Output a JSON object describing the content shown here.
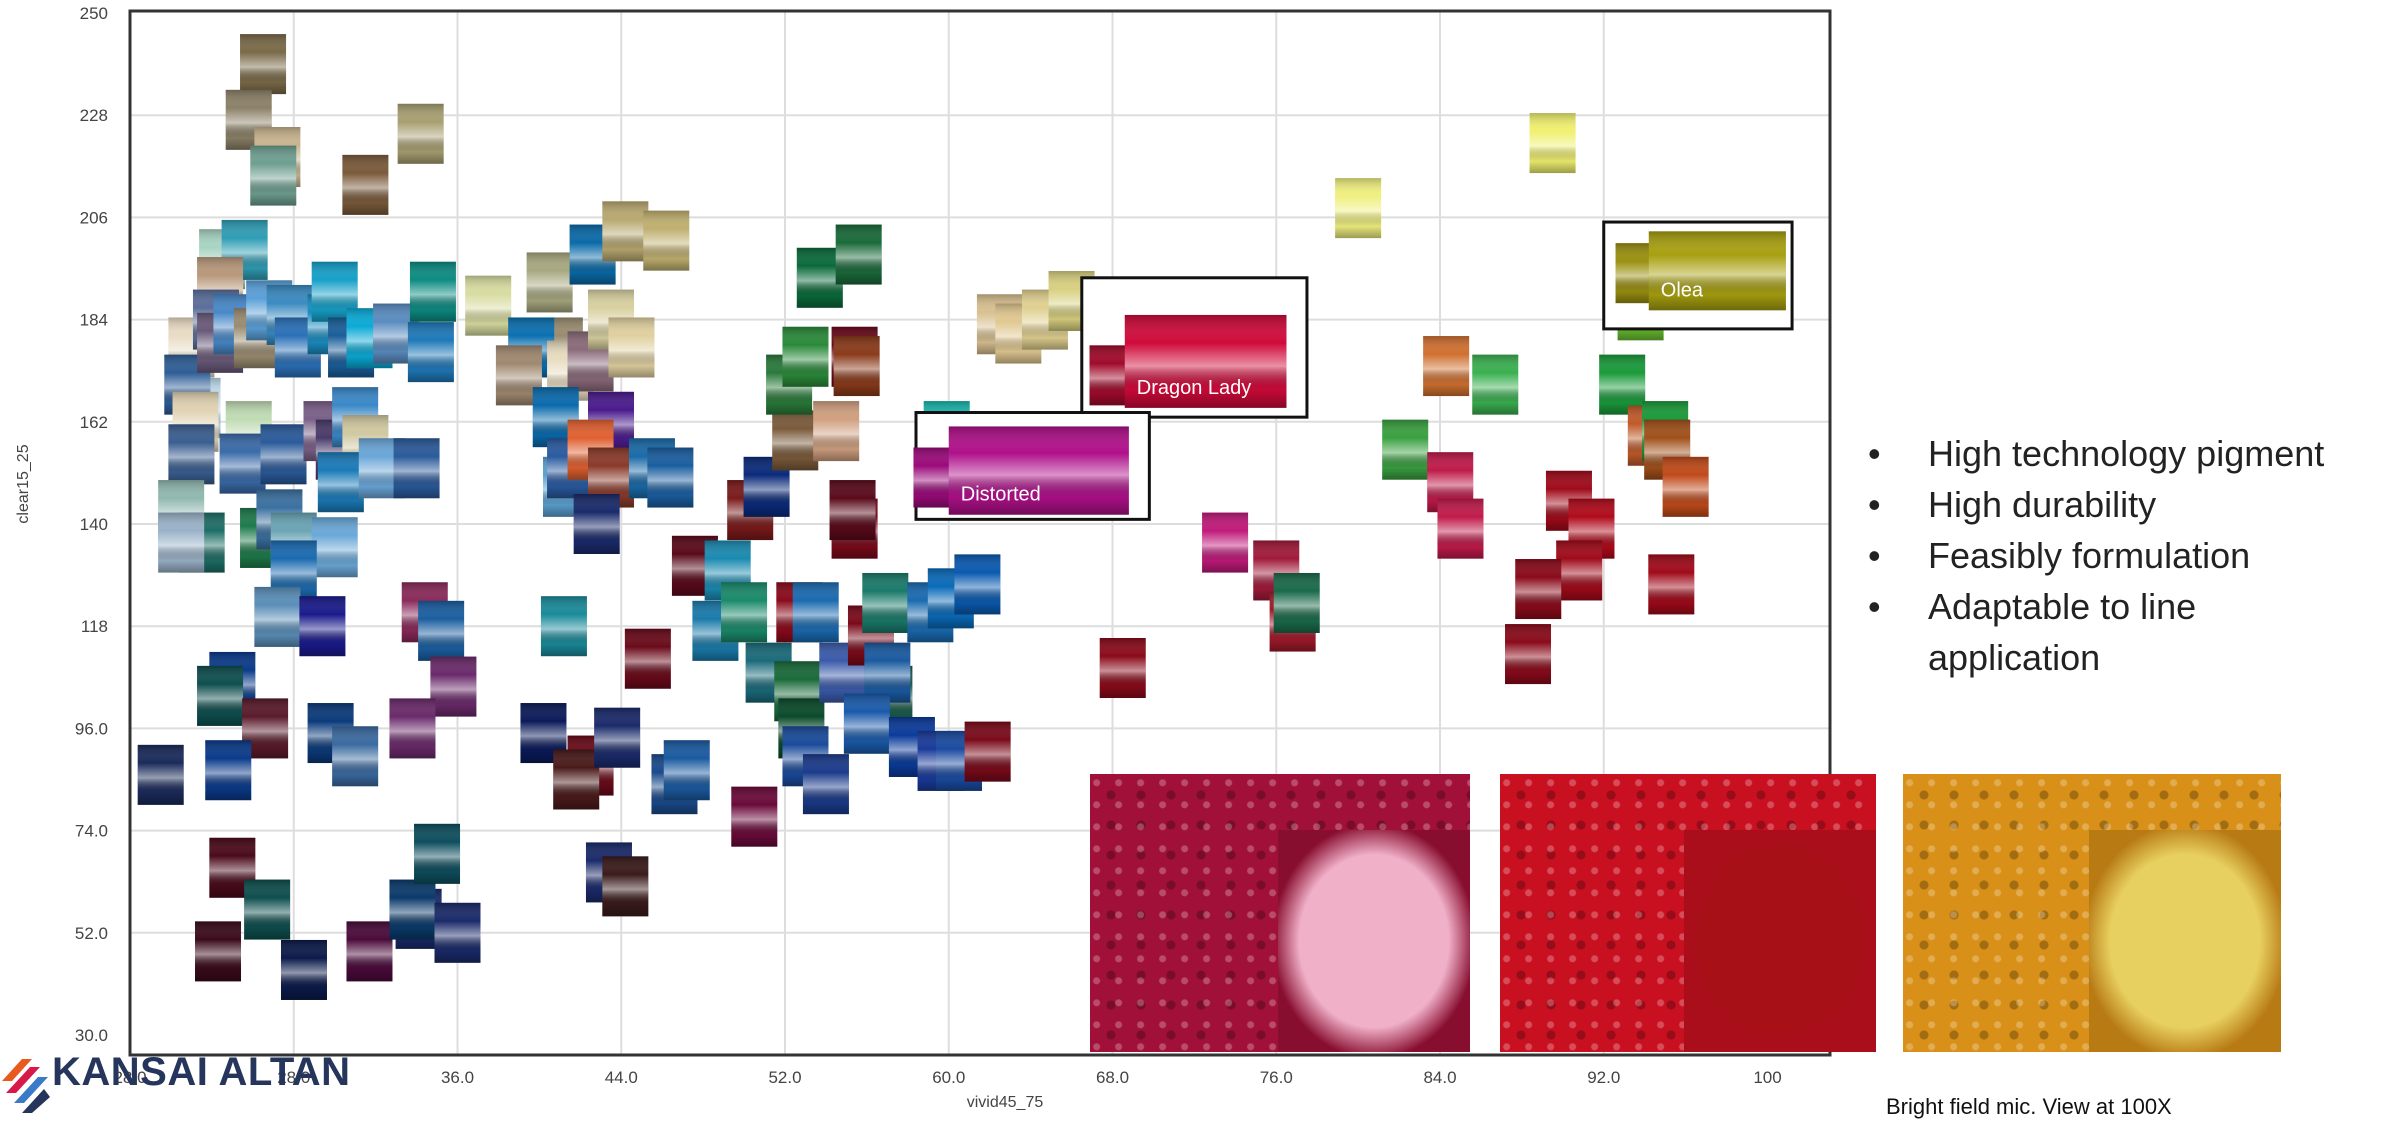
{
  "chart_data": {
    "type": "scatter",
    "xlabel": "vivid45_75",
    "ylabel": "clear15_25",
    "xlim": [
      24,
      100
    ],
    "ylim": [
      30,
      250
    ],
    "x_ticks": [
      "28.0",
      "28.0",
      "36.0",
      "44.0",
      "52.0",
      "60.0",
      "68.0",
      "76.0",
      "84.0",
      "92.0",
      "100"
    ],
    "y_ticks": [
      "250",
      "228",
      "206",
      "184",
      "162",
      "140",
      "118",
      "96.0",
      "74.0",
      "52.0",
      "30.0"
    ],
    "grid": true,
    "marker": "color swatch squares",
    "points": [
      {
        "x": 30.5,
        "y": 239,
        "c": "#7a6a48"
      },
      {
        "x": 29.8,
        "y": 227,
        "c": "#8c8168"
      },
      {
        "x": 31.2,
        "y": 219,
        "c": "#c9b48e"
      },
      {
        "x": 31.0,
        "y": 215,
        "c": "#6e9f90"
      },
      {
        "x": 35.5,
        "y": 213,
        "c": "#7a5a3a"
      },
      {
        "x": 38.2,
        "y": 224,
        "c": "#a8a072"
      },
      {
        "x": 28.5,
        "y": 197,
        "c": "#a8d4c2"
      },
      {
        "x": 29.6,
        "y": 199,
        "c": "#2f9db5"
      },
      {
        "x": 28.4,
        "y": 191,
        "c": "#b8987a"
      },
      {
        "x": 27.0,
        "y": 178,
        "c": "#e8dcc4"
      },
      {
        "x": 27.3,
        "y": 165,
        "c": "#c0dcee"
      },
      {
        "x": 26.8,
        "y": 170,
        "c": "#2e5e96"
      },
      {
        "x": 27.2,
        "y": 162,
        "c": "#e0d2b2"
      },
      {
        "x": 27.0,
        "y": 155,
        "c": "#3a5e90"
      },
      {
        "x": 28.2,
        "y": 184,
        "c": "#5a6e9a"
      },
      {
        "x": 28.4,
        "y": 179,
        "c": "#6a5a7a"
      },
      {
        "x": 29.2,
        "y": 183,
        "c": "#4888c8"
      },
      {
        "x": 30.2,
        "y": 180,
        "c": "#9a8c70"
      },
      {
        "x": 30.8,
        "y": 186,
        "c": "#5aa0d8"
      },
      {
        "x": 31.8,
        "y": 185,
        "c": "#3a8ac0"
      },
      {
        "x": 32.2,
        "y": 178,
        "c": "#2a70b8"
      },
      {
        "x": 33.8,
        "y": 183,
        "c": "#1a8cc0"
      },
      {
        "x": 34.0,
        "y": 190,
        "c": "#16a0c8"
      },
      {
        "x": 34.8,
        "y": 178,
        "c": "#1a5e9a"
      },
      {
        "x": 35.7,
        "y": 180,
        "c": "#0aaad6"
      },
      {
        "x": 37.0,
        "y": 181,
        "c": "#5a8cc0"
      },
      {
        "x": 38.7,
        "y": 177,
        "c": "#1e78b8"
      },
      {
        "x": 38.8,
        "y": 190,
        "c": "#0c8c82"
      },
      {
        "x": 41.5,
        "y": 187,
        "c": "#d8dca0"
      },
      {
        "x": 44.5,
        "y": 192,
        "c": "#a8a880"
      },
      {
        "x": 45.0,
        "y": 178,
        "c": "#9a8c70"
      },
      {
        "x": 43.6,
        "y": 178,
        "c": "#0a70b0"
      },
      {
        "x": 43.0,
        "y": 172,
        "c": "#a08870"
      },
      {
        "x": 45.5,
        "y": 173,
        "c": "#e8dcc0"
      },
      {
        "x": 46.5,
        "y": 175,
        "c": "#8a6a7a"
      },
      {
        "x": 47.5,
        "y": 162,
        "c": "#4a1a8c"
      },
      {
        "x": 44.8,
        "y": 163,
        "c": "#0a6aac"
      },
      {
        "x": 46.6,
        "y": 198,
        "c": "#0a6aa8"
      },
      {
        "x": 48.2,
        "y": 203,
        "c": "#b8a870"
      },
      {
        "x": 47.5,
        "y": 184,
        "c": "#d8d0a0"
      },
      {
        "x": 48.5,
        "y": 178,
        "c": "#e0d0a0"
      },
      {
        "x": 29.8,
        "y": 160,
        "c": "#c0dcb4"
      },
      {
        "x": 29.5,
        "y": 153,
        "c": "#3a6aa8"
      },
      {
        "x": 31.5,
        "y": 155,
        "c": "#2a5a9a"
      },
      {
        "x": 33.6,
        "y": 160,
        "c": "#7a6088"
      },
      {
        "x": 34.2,
        "y": 156,
        "c": "#4a3a6a"
      },
      {
        "x": 35.0,
        "y": 163,
        "c": "#3a88c8"
      },
      {
        "x": 35.5,
        "y": 157,
        "c": "#d0c8a0"
      },
      {
        "x": 34.3,
        "y": 149,
        "c": "#1a7ab8"
      },
      {
        "x": 36.3,
        "y": 152,
        "c": "#6aa6d8"
      },
      {
        "x": 38.0,
        "y": 152,
        "c": "#2a5a9a"
      },
      {
        "x": 26.5,
        "y": 143,
        "c": "#90b8b0"
      },
      {
        "x": 27.5,
        "y": 136,
        "c": "#1e6e66"
      },
      {
        "x": 26.5,
        "y": 136,
        "c": "#9ab2c8"
      },
      {
        "x": 30.5,
        "y": 137,
        "c": "#1e7a4a"
      },
      {
        "x": 31.3,
        "y": 141,
        "c": "#3a70a0"
      },
      {
        "x": 32.0,
        "y": 136,
        "c": "#6aa4b4"
      },
      {
        "x": 34.0,
        "y": 135,
        "c": "#6aa8d8"
      },
      {
        "x": 32.0,
        "y": 130,
        "c": "#1a6ab0"
      },
      {
        "x": 31.2,
        "y": 120,
        "c": "#5a8eb8"
      },
      {
        "x": 33.4,
        "y": 118,
        "c": "#1a1a8c"
      },
      {
        "x": 38.4,
        "y": 121,
        "c": "#8a2a5a"
      },
      {
        "x": 39.2,
        "y": 117,
        "c": "#1a5ea0"
      },
      {
        "x": 39.8,
        "y": 105,
        "c": "#6a2a6a"
      },
      {
        "x": 29.0,
        "y": 106,
        "c": "#0a3a8a"
      },
      {
        "x": 28.4,
        "y": 103,
        "c": "#0e4e4e"
      },
      {
        "x": 30.6,
        "y": 96,
        "c": "#5a1a2a"
      },
      {
        "x": 33.8,
        "y": 95,
        "c": "#0a3a7a"
      },
      {
        "x": 35.0,
        "y": 90,
        "c": "#3a6aa0"
      },
      {
        "x": 37.8,
        "y": 96,
        "c": "#6a2a6a"
      },
      {
        "x": 25.5,
        "y": 86,
        "c": "#1a2a5a"
      },
      {
        "x": 28.8,
        "y": 87,
        "c": "#0a3a8a"
      },
      {
        "x": 29.0,
        "y": 66,
        "c": "#4a0a1a"
      },
      {
        "x": 28.3,
        "y": 48,
        "c": "#3a0a1a"
      },
      {
        "x": 30.7,
        "y": 57,
        "c": "#0e4e4e"
      },
      {
        "x": 32.5,
        "y": 44,
        "c": "#0a1a4a"
      },
      {
        "x": 35.7,
        "y": 48,
        "c": "#4a0a3a"
      },
      {
        "x": 38.1,
        "y": 55,
        "c": "#1a2a6a"
      },
      {
        "x": 37.8,
        "y": 57,
        "c": "#0a3a6a"
      },
      {
        "x": 39.0,
        "y": 69,
        "c": "#0e4e5e"
      },
      {
        "x": 40.0,
        "y": 52,
        "c": "#1a2a6a"
      },
      {
        "x": 45.3,
        "y": 148,
        "c": "#5aa0d0"
      },
      {
        "x": 45.5,
        "y": 152,
        "c": "#2a5aa0"
      },
      {
        "x": 46.5,
        "y": 156,
        "c": "#e06030"
      },
      {
        "x": 47.5,
        "y": 150,
        "c": "#8a3a2a"
      },
      {
        "x": 46.8,
        "y": 140,
        "c": "#1a2a6a"
      },
      {
        "x": 49.5,
        "y": 152,
        "c": "#1a6aa8"
      },
      {
        "x": 50.4,
        "y": 150,
        "c": "#1a5ea0"
      },
      {
        "x": 45.2,
        "y": 118,
        "c": "#1a8a9a"
      },
      {
        "x": 49.3,
        "y": 111,
        "c": "#6a0a1a"
      },
      {
        "x": 51.6,
        "y": 131,
        "c": "#5a0a1a"
      },
      {
        "x": 53.2,
        "y": 130,
        "c": "#1a8ab0"
      },
      {
        "x": 54.3,
        "y": 143,
        "c": "#7a1a1a"
      },
      {
        "x": 55.1,
        "y": 148,
        "c": "#0a2a7a"
      },
      {
        "x": 56.7,
        "y": 121,
        "c": "#8a0a1a"
      },
      {
        "x": 52.6,
        "y": 117,
        "c": "#1a7aaa"
      },
      {
        "x": 54.0,
        "y": 121,
        "c": "#1a8a6a"
      },
      {
        "x": 55.2,
        "y": 108,
        "c": "#1a6a7a"
      },
      {
        "x": 57.5,
        "y": 121,
        "c": "#1a6ab0"
      },
      {
        "x": 56.6,
        "y": 104,
        "c": "#1a6a3a"
      },
      {
        "x": 56.8,
        "y": 96,
        "c": "#0a4a2a"
      },
      {
        "x": 58.8,
        "y": 108,
        "c": "#3a5aaa"
      },
      {
        "x": 60.2,
        "y": 116,
        "c": "#7a0a1a"
      },
      {
        "x": 61.1,
        "y": 103,
        "c": "#1a5a4a"
      },
      {
        "x": 60.9,
        "y": 123,
        "c": "#1a7a6a"
      },
      {
        "x": 63.1,
        "y": 121,
        "c": "#1a6ab0"
      },
      {
        "x": 64.1,
        "y": 124,
        "c": "#0a6ab8"
      },
      {
        "x": 65.4,
        "y": 127,
        "c": "#0a5ab0"
      },
      {
        "x": 61.0,
        "y": 108,
        "c": "#1a5aa0"
      },
      {
        "x": 59.4,
        "y": 139,
        "c": "#7a0a1a"
      },
      {
        "x": 59.3,
        "y": 143,
        "c": "#5a0a1a"
      },
      {
        "x": 56.5,
        "y": 158,
        "c": "#7a5a3a"
      },
      {
        "x": 58.5,
        "y": 160,
        "c": "#d0a080"
      },
      {
        "x": 56.2,
        "y": 170,
        "c": "#2a7a3a"
      },
      {
        "x": 57.0,
        "y": 176,
        "c": "#2a8a3a"
      },
      {
        "x": 59.4,
        "y": 176,
        "c": "#6a0a1a"
      },
      {
        "x": 59.5,
        "y": 174,
        "c": "#8a3a1a"
      },
      {
        "x": 57.7,
        "y": 193,
        "c": "#0a6a3a"
      },
      {
        "x": 59.6,
        "y": 198,
        "c": "#1a6a3a"
      },
      {
        "x": 50.2,
        "y": 201,
        "c": "#c0b070"
      },
      {
        "x": 44.2,
        "y": 95,
        "c": "#0a1a5a"
      },
      {
        "x": 46.5,
        "y": 88,
        "c": "#6a0a1a"
      },
      {
        "x": 45.8,
        "y": 85,
        "c": "#4a1a1a"
      },
      {
        "x": 47.8,
        "y": 94,
        "c": "#1a2a6a"
      },
      {
        "x": 47.4,
        "y": 65,
        "c": "#1a2a6a"
      },
      {
        "x": 48.2,
        "y": 62,
        "c": "#3a1a1a"
      },
      {
        "x": 50.6,
        "y": 84,
        "c": "#1a4a8a"
      },
      {
        "x": 51.2,
        "y": 87,
        "c": "#1a5aa0"
      },
      {
        "x": 54.5,
        "y": 77,
        "c": "#6a0a3a"
      },
      {
        "x": 57.0,
        "y": 90,
        "c": "#1a4a9a"
      },
      {
        "x": 58.0,
        "y": 84,
        "c": "#1a3a8a"
      },
      {
        "x": 60.0,
        "y": 97,
        "c": "#1a5aaa"
      },
      {
        "x": 62.2,
        "y": 92,
        "c": "#0a3a9a"
      },
      {
        "x": 63.6,
        "y": 89,
        "c": "#1a3a9a"
      },
      {
        "x": 64.5,
        "y": 89,
        "c": "#1a4aa0"
      },
      {
        "x": 65.9,
        "y": 91,
        "c": "#7a0a1a"
      },
      {
        "x": 66.5,
        "y": 183,
        "c": "#d8c090"
      },
      {
        "x": 67.4,
        "y": 181,
        "c": "#e0c890"
      },
      {
        "x": 68.7,
        "y": 184,
        "c": "#e0d090"
      },
      {
        "x": 70.0,
        "y": 188,
        "c": "#d8d080"
      },
      {
        "x": 63.9,
        "y": 160,
        "c": "#1ab8b0"
      },
      {
        "x": 64.0,
        "y": 154,
        "c": "#c01a8a"
      },
      {
        "x": 77.5,
        "y": 136,
        "c": "#c01a7a"
      },
      {
        "x": 80.0,
        "y": 130,
        "c": "#a01a3a"
      },
      {
        "x": 80.8,
        "y": 119,
        "c": "#a01a2a"
      },
      {
        "x": 81.0,
        "y": 123,
        "c": "#1a6a4a"
      },
      {
        "x": 72.5,
        "y": 109,
        "c": "#8a0a1a"
      },
      {
        "x": 84.0,
        "y": 208,
        "c": "#f0f080"
      },
      {
        "x": 93.5,
        "y": 222,
        "c": "#f0f070"
      },
      {
        "x": 88.3,
        "y": 174,
        "c": "#d07030"
      },
      {
        "x": 90.7,
        "y": 170,
        "c": "#3ab050"
      },
      {
        "x": 86.3,
        "y": 156,
        "c": "#3aa040"
      },
      {
        "x": 88.5,
        "y": 149,
        "c": "#c01a4a"
      },
      {
        "x": 89.0,
        "y": 139,
        "c": "#c01a4a"
      },
      {
        "x": 94.3,
        "y": 145,
        "c": "#a00a1a"
      },
      {
        "x": 95.4,
        "y": 139,
        "c": "#b00a1a"
      },
      {
        "x": 94.8,
        "y": 130,
        "c": "#a00a1a"
      },
      {
        "x": 92.8,
        "y": 126,
        "c": "#8a0a1a"
      },
      {
        "x": 92.3,
        "y": 112,
        "c": "#8a0a1a"
      },
      {
        "x": 96.9,
        "y": 170,
        "c": "#1a9a3a"
      },
      {
        "x": 97.8,
        "y": 186,
        "c": "#6ac030"
      },
      {
        "x": 98.3,
        "y": 159,
        "c": "#c05a2a"
      },
      {
        "x": 99.0,
        "y": 160,
        "c": "#1a9a3a"
      },
      {
        "x": 99.1,
        "y": 156,
        "c": "#a0501a"
      },
      {
        "x": 100.0,
        "y": 148,
        "c": "#c04a1a"
      },
      {
        "x": 99.3,
        "y": 127,
        "c": "#a00a1a"
      }
    ],
    "callouts": [
      {
        "label": "Dragon Lady",
        "x": [
          70.5,
          81.5
        ],
        "y": [
          163,
          193
        ],
        "small": {
          "x": 72.0,
          "y": 172,
          "c": "#a00a2a"
        },
        "swatch": {
          "x": [
            72.6,
            80.5
          ],
          "y": [
            165,
            185
          ],
          "c": "#d00a3a"
        }
      },
      {
        "label": "Distorted",
        "x": [
          62.4,
          73.8
        ],
        "y": [
          141,
          164
        ],
        "small": {
          "x": 63.4,
          "y": 150,
          "c": "#9a0a7a"
        },
        "swatch": {
          "x": [
            64.0,
            72.8
          ],
          "y": [
            142,
            161
          ],
          "c": "#b0108a"
        }
      },
      {
        "label": "Olea",
        "x": [
          96.0,
          105.2
        ],
        "y": [
          182,
          205
        ],
        "small": {
          "x": 97.7,
          "y": 194,
          "c": "#9a9010"
        },
        "swatch": {
          "x": [
            98.2,
            104.9
          ],
          "y": [
            186,
            203
          ],
          "c": "#a8a010"
        }
      }
    ]
  },
  "bullets": [
    "High technology pigment",
    "High durability",
    "Feasibly formulation",
    "Adaptable to line application"
  ],
  "micrographs": [
    {
      "bg": "#a01038",
      "inset_bg": "#f0b0c8"
    },
    {
      "bg": "#c81020",
      "inset_bg": "#a81018"
    },
    {
      "bg": "#d89018",
      "inset_bg": "#e8d060"
    }
  ],
  "caption": "Bright field mic. View at 100X",
  "logo_text": "KANSAI ALTAN"
}
